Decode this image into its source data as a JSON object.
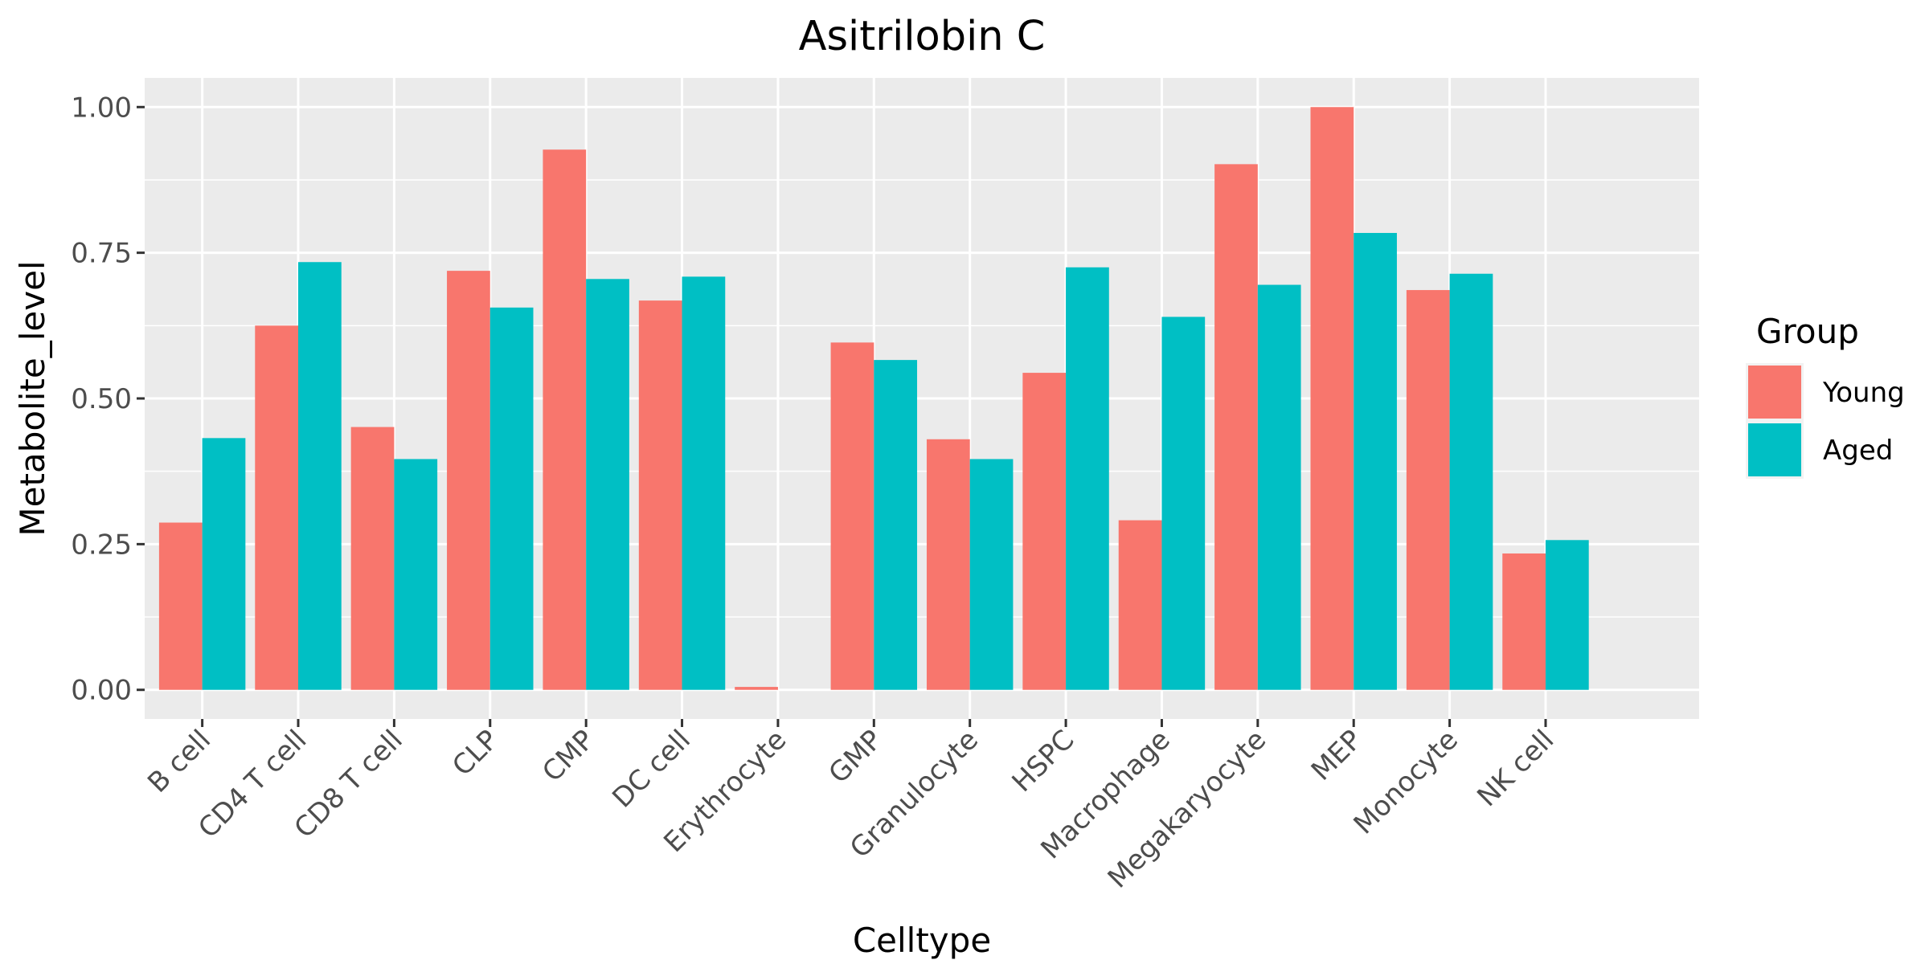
{
  "chart_data": {
    "type": "bar",
    "title": "Asitrilobin C",
    "xlabel": "Celltype",
    "ylabel": "Metabolite_level",
    "ylim": [
      -0.05,
      1.05
    ],
    "yticks": [
      0.0,
      0.25,
      0.5,
      0.75,
      1.0
    ],
    "ytick_labels": [
      "0.00",
      "0.25",
      "0.50",
      "0.75",
      "1.00"
    ],
    "grid": true,
    "legend_position": "right",
    "legend_title": "Group",
    "categories": [
      "B cell",
      "CD4 T cell",
      "CD8 T cell",
      "CLP",
      "CMP",
      "DC cell",
      "Erythrocyte",
      "GMP",
      "Granulocyte",
      "HSPC",
      "Macrophage",
      "Megakaryocyte",
      "MEP",
      "Monocyte",
      "NK cell"
    ],
    "series": [
      {
        "name": "Young",
        "color": "#F8766D",
        "values": [
          0.287,
          0.625,
          0.451,
          0.719,
          0.927,
          0.668,
          0.005,
          0.596,
          0.43,
          0.544,
          0.291,
          0.902,
          1.0,
          0.686,
          0.234
        ]
      },
      {
        "name": "Aged",
        "color": "#00BFC4",
        "values": [
          0.432,
          0.734,
          0.396,
          0.656,
          0.705,
          0.709,
          0.0,
          0.566,
          0.396,
          0.725,
          0.64,
          0.695,
          0.784,
          0.714,
          0.257
        ]
      }
    ]
  }
}
